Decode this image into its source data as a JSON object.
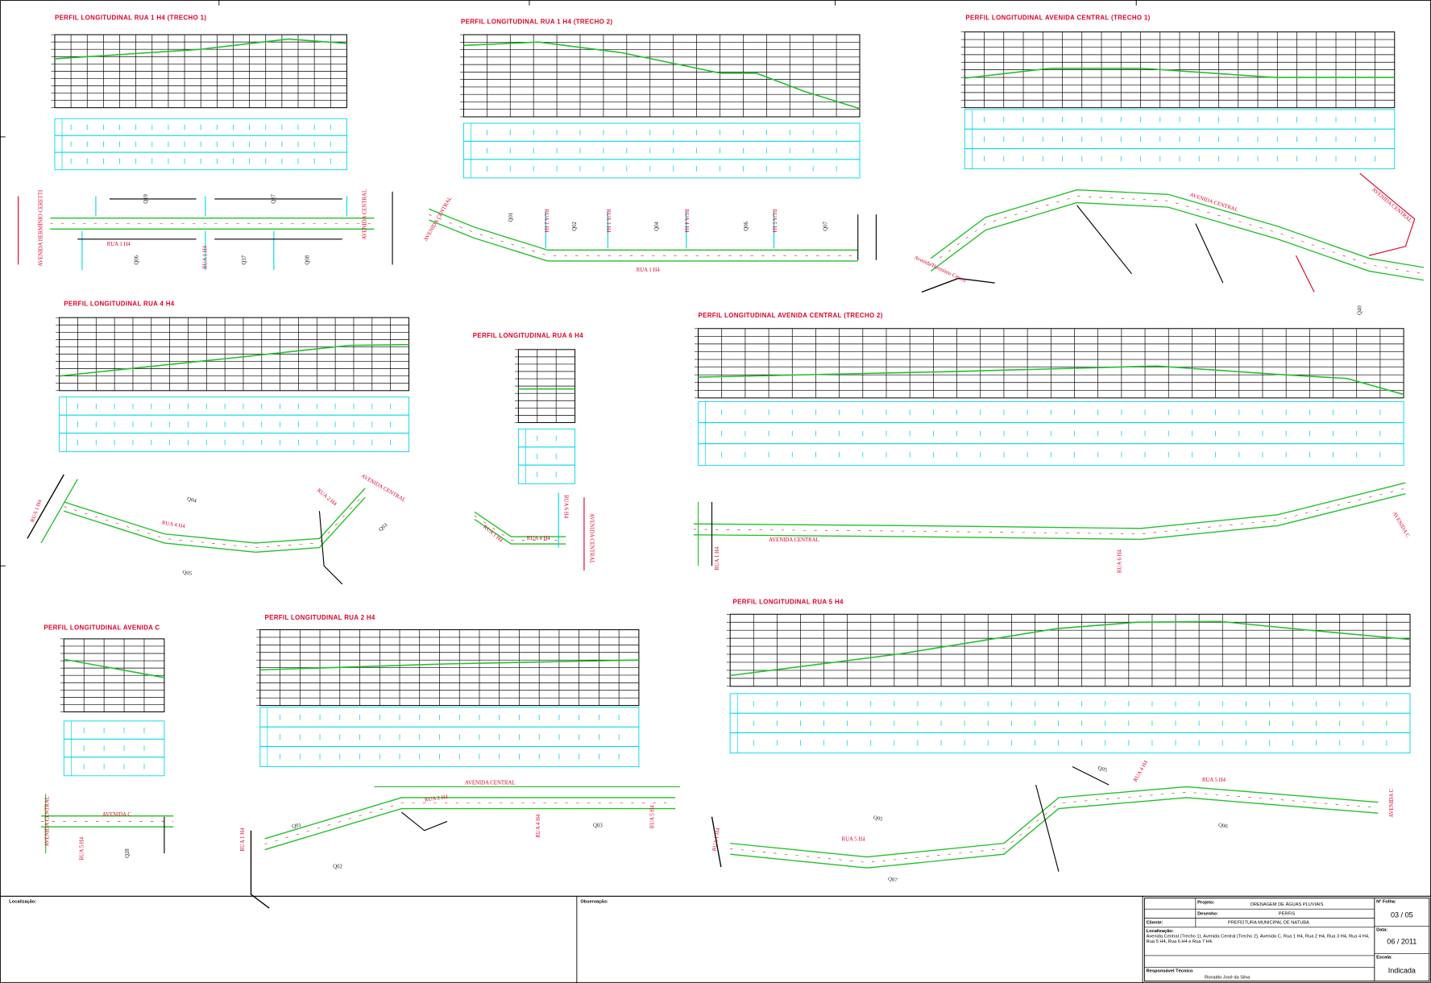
{
  "profiles": [
    {
      "title": "PERFIL LONGITUDINAL RUA 1 H4 (TRECHO 1)"
    },
    {
      "title": "PERFIL LONGITUDINAL RUA 1 H4 (TRECHO 2)"
    },
    {
      "title": "PERFIL LONGITUDINAL AVENIDA CENTRAL (TRECHO 1)"
    },
    {
      "title": "PERFIL LONGITUDINAL RUA 4 H4"
    },
    {
      "title": "PERFIL LONGITUDINAL RUA 6 H4"
    },
    {
      "title": "PERFIL LONGITUDINAL AVENIDA CENTRAL (TRECHO 2)"
    },
    {
      "title": "PERFIL LONGITUDINAL AVENIDA C"
    },
    {
      "title": "PERFIL LONGITUDINAL RUA 2 H4"
    },
    {
      "title": "PERFIL LONGITUDINAL RUA 5 H4"
    }
  ],
  "plan_labels": [
    "Q19",
    "Q27",
    "RUA 1 H4",
    "Q06",
    "Q37",
    "Q08",
    "RUA 1 H4",
    "AVENIDA HERMÍNIO CERETTI",
    "AVENIDA CENTRAL",
    "AVENIDA CENTRAL",
    "Q01",
    "Q02",
    "Q04",
    "Q06",
    "Q07",
    "RUA 1 H4",
    "RUA 2 H4",
    "RUA 3 H4",
    "RUA 4 H4",
    "RUA 5 H4",
    "AVENIDA CENTRAL",
    "AVENIDA CENTRAL",
    "Avenida Hermínio Ceretti",
    "Q40",
    "Q04",
    "RUA 4 H4",
    "RUA 1 H4",
    "RUA 2 H4",
    "AVENIDA CENTRAL",
    "Q03",
    "Q05",
    "RUA 4 H4",
    "RUA 6 H4",
    "AVENIDA CENTRAL",
    "RUA 1 H4",
    "AVENIDA CENTRAL",
    "RUA 1 H4",
    "RUA 6 H4",
    "AVENIDA C",
    "AVENIDA C",
    "AVENIDA CENTRAL",
    "Q28",
    "RUA 5 H4",
    "AVENIDA CENTRAL",
    "RUA 2 H4",
    "Q01",
    "Q02",
    "Q03",
    "RUA 1 H4",
    "RUA 4 H4",
    "RUA 5 H4",
    "Q05",
    "RUA 4 H4",
    "RUA 5 H4",
    "Q05",
    "RUA 5 H4",
    "Q06",
    "Q07",
    "RUA 1 H4",
    "AVENIDA C"
  ],
  "footer": {
    "location_label": "Localização:",
    "notes_label": "Observação:",
    "project_label": "Projeto:",
    "project": "DRENAGEM DE ÁGUAS PLUVIAIS",
    "drawing_label": "Desenho:",
    "drawing": "PERFIS",
    "client_label": "Cliente:",
    "client": "PREFEITURA MUNICIPAL DE NATUBA",
    "places_label": "Localização:",
    "places": "Avenida Central (Trecho 1), Avenida Central (Trecho 2), Avenida C, Rua 1 H4, Rua 2 H4, Rua 3 H4, Rua 4 H4, Rua 5 H4, Rua 6 H4 e Rua 7 H4.",
    "responsible_label": "Responsável Técnico",
    "responsible": "Ronaldo José da Silva",
    "sheet_label": "Nº Folha:",
    "sheet": "03 / 05",
    "date_label": "Data:",
    "date": "06 / 2011",
    "scale_label": "Escala:",
    "scale": "Indicada"
  }
}
